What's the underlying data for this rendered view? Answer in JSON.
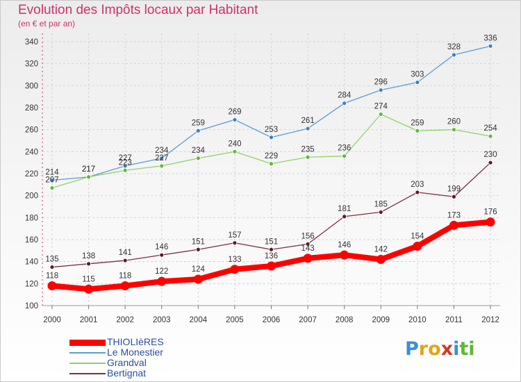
{
  "header": {
    "title": "Evolution des Impôts locaux par Habitant",
    "subtitle": "(en € et par an)"
  },
  "logo": {
    "text": "Proxiti",
    "letters": [
      {
        "ch": "P",
        "color": "#3a8fd6"
      },
      {
        "ch": "r",
        "color": "#e6a21c"
      },
      {
        "ch": "o",
        "color": "#e6a21c"
      },
      {
        "ch": "x",
        "color": "#d03a2a"
      },
      {
        "ch": "i",
        "color": "#3a8fd6"
      },
      {
        "ch": "t",
        "color": "#5db832"
      },
      {
        "ch": "i",
        "color": "#5db832"
      }
    ]
  },
  "chart_data": {
    "type": "line",
    "x": [
      "2000",
      "2001",
      "2002",
      "2003",
      "2004",
      "2005",
      "2006",
      "2007",
      "2008",
      "2009",
      "2010",
      "2011",
      "2012"
    ],
    "ylim": [
      100,
      340
    ],
    "yticks": [
      "100",
      "120",
      "140",
      "160",
      "180",
      "200",
      "220",
      "240",
      "260",
      "280",
      "300",
      "320",
      "340"
    ],
    "grid": true,
    "legend_position": "bottom-left",
    "series": [
      {
        "name": "Le Monestier",
        "color": "#5b9bd5",
        "marker": "#3b7fc4",
        "width": 1.3,
        "values": [
          214,
          217,
          227,
          234,
          259,
          269,
          253,
          261,
          284,
          296,
          303,
          328,
          336
        ],
        "labels": [
          "214",
          "217",
          "227",
          "234",
          "259",
          "269",
          "253",
          "261",
          "284",
          "296",
          "303",
          "328",
          "336"
        ]
      },
      {
        "name": "Grandval",
        "color": "#8fd16a",
        "marker": "#62b83a",
        "width": 1.3,
        "values": [
          207,
          217,
          223,
          227,
          234,
          240,
          229,
          235,
          236,
          274,
          259,
          260,
          254
        ],
        "labels": [
          "207",
          "217",
          "223",
          "227",
          "234",
          "240",
          "229",
          "235",
          "236",
          "274",
          "259",
          "260",
          "254"
        ]
      },
      {
        "name": "Bertignat",
        "color": "#7a2f3a",
        "marker": "#5e1a22",
        "width": 1.3,
        "values": [
          135,
          138,
          141,
          146,
          151,
          157,
          151,
          156,
          181,
          185,
          203,
          199,
          230
        ],
        "labels": [
          "135",
          "138",
          "141",
          "146",
          "151",
          "157",
          "151",
          "156",
          "181",
          "185",
          "203",
          "199",
          "230"
        ]
      },
      {
        "name": "THIOLIèRES",
        "color": "#ff0000",
        "marker": "#ff0000",
        "width": 8,
        "values": [
          118,
          115,
          118,
          122,
          124,
          133,
          136,
          143,
          146,
          142,
          154,
          173,
          176
        ],
        "labels": [
          "118",
          "115",
          "118",
          "122",
          "124",
          "133",
          "136",
          "143",
          "146",
          "142",
          "154",
          "173",
          "176"
        ]
      }
    ],
    "legend": [
      "THIOLIèRES",
      "Le Monestier",
      "Grandval",
      "Bertignat"
    ]
  }
}
